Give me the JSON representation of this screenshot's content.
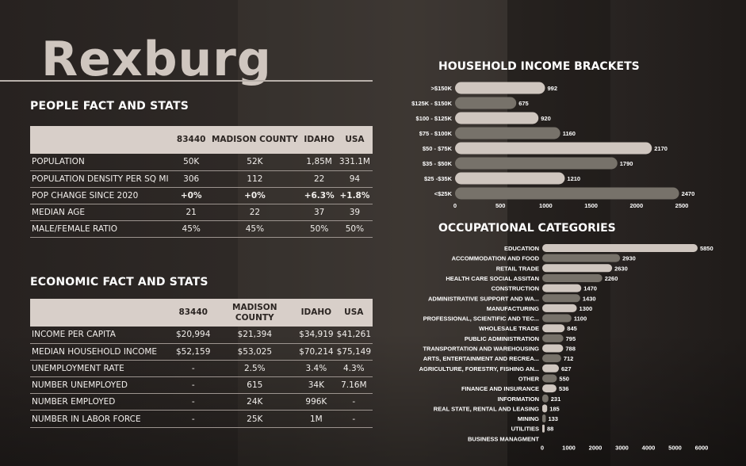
{
  "page": {
    "title": "Rexburg"
  },
  "people": {
    "section_title": "PEOPLE FACT AND STATS",
    "headers": [
      "",
      "83440",
      "MADISON COUNTY",
      "IDAHO",
      "USA"
    ],
    "rows": [
      {
        "label": "POPULATION",
        "values": [
          "50K",
          "52K",
          "1,85M",
          "331.1M"
        ]
      },
      {
        "label": "POPULATION DENSITY PER SQ MI",
        "values": [
          "306",
          "112",
          "22",
          "94"
        ]
      },
      {
        "label": "POP CHANGE SINCE 2020",
        "values": [
          "+0%",
          "+0%",
          "+6.3%",
          "+1.8%"
        ],
        "highlight": true
      },
      {
        "label": "MEDIAN AGE",
        "values": [
          "21",
          "22",
          "37",
          "39"
        ]
      },
      {
        "label": "MALE/FEMALE RATIO",
        "values": [
          "45%",
          "45%",
          "50%",
          "50%"
        ]
      }
    ]
  },
  "economic": {
    "section_title": "ECONOMIC FACT AND STATS",
    "headers": [
      "",
      "83440",
      "MADISON COUNTY",
      "IDAHO",
      "USA"
    ],
    "rows": [
      {
        "label": "INCOME PER CAPITA",
        "values": [
          "$20,994",
          "$21,394",
          "$34,919",
          "$41,261"
        ]
      },
      {
        "label": "MEDIAN HOUSEHOLD INCOME",
        "values": [
          "$52,159",
          "$53,025",
          "$70,214",
          "$75,149"
        ]
      },
      {
        "label": "UNEMPLOYMENT RATE",
        "values": [
          "-",
          "2.5%",
          "3.4%",
          "4.3%"
        ]
      },
      {
        "label": "NUMBER UNEMPLOYED",
        "values": [
          "-",
          "615",
          "34K",
          "7.16M"
        ]
      },
      {
        "label": "NUMBER EMPLOYED",
        "values": [
          "-",
          "24K",
          "996K",
          "-"
        ]
      },
      {
        "label": "NUMBER IN LABOR FORCE",
        "values": [
          "-",
          "25K",
          "1M",
          "-"
        ]
      }
    ]
  },
  "colors": {
    "bar_light": "#cfc6bf",
    "bar_dark": "#77726a",
    "positive": "#86d46a",
    "header_bg": "#d8cfc9"
  },
  "chart_data": [
    {
      "type": "bar",
      "orientation": "horizontal",
      "title": "HOUSEHOLD INCOME BRACKETS",
      "categories": [
        ">$150K",
        "$125K - $150K",
        "$100 - $125K",
        "$75 - $100K",
        "$50 - $75K",
        "$35 - $50K",
        "$25 -$35K",
        "<$25K"
      ],
      "values": [
        992,
        675,
        920,
        1160,
        2170,
        1790,
        1210,
        2470
      ],
      "xlim": [
        0,
        2500
      ],
      "xticks": [
        0,
        500,
        1000,
        1500,
        2000,
        2500
      ],
      "grid": false,
      "legend": "none"
    },
    {
      "type": "bar",
      "orientation": "horizontal",
      "title": "OCCUPATIONAL CATEGORIES",
      "categories": [
        "EDUCATION",
        "ACCOMMODATION AND FOOD",
        "RETAIL TRADE",
        "HEALTH CARE SOCIAL ASSITAN",
        "CONSTRUCTION",
        "ADMINISTRATIVE SUPPORT AND WA...",
        "MANUFACTURING",
        "PROFESSIONAL, SCIENTIFIC AND TEC...",
        "WHOLESALE TRADE",
        "PUBLIC ADMINISTRATION",
        "TRANSPORTATION AND WAREHOUSING",
        "ARTS, ENTERTAINMENT AND RECREA...",
        "AGRICULTURE, FORESTRY, FISHING AN...",
        "OTHER",
        "FINANCE AND INSURANCE",
        "INFORMATION",
        "REAL STATE, RENTAL AND LEASING",
        "MINING",
        "UTILITIES",
        "BUSINESS MANAGMENT"
      ],
      "values": [
        5850,
        2930,
        2630,
        2260,
        1470,
        1430,
        1300,
        1100,
        845,
        795,
        788,
        712,
        627,
        550,
        536,
        231,
        185,
        133,
        88,
        0
      ],
      "value_labels": [
        "5850",
        "2930",
        "2630",
        "2260",
        "1470",
        "1430",
        "1300",
        "1100",
        "845",
        "795",
        "788",
        "712",
        "627",
        "550",
        "536",
        "231",
        "185",
        "133",
        "88",
        ""
      ],
      "xlim": [
        0,
        6000
      ],
      "xticks": [
        0,
        1000,
        2000,
        3000,
        4000,
        5000,
        6000
      ],
      "grid": false,
      "legend": "none"
    }
  ]
}
